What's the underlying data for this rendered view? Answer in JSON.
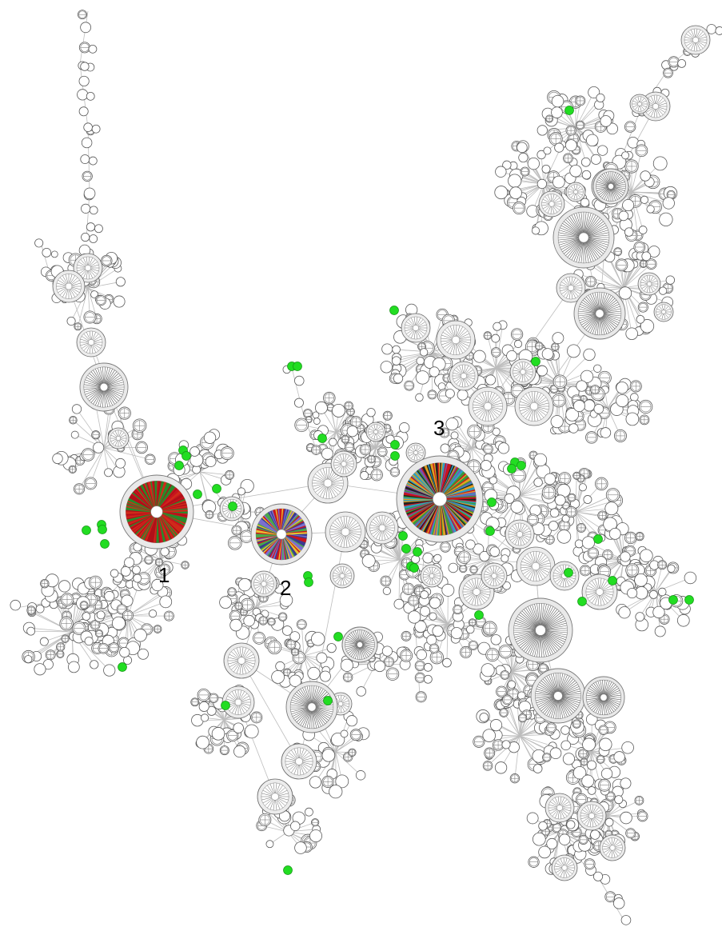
{
  "diagram": {
    "cluster_labels": [
      {
        "id": "cluster-1",
        "text": "1"
      },
      {
        "id": "cluster-2",
        "text": "2"
      },
      {
        "id": "cluster-3",
        "text": "3"
      }
    ],
    "colors": {
      "background": "#ffffff",
      "node_fill": "#ffffff",
      "node_stroke": "#5a5a5a",
      "hub_fill": "#e9e9e9",
      "edge": "#bdbdbd",
      "highlight_node": "#22dd22",
      "cluster1_palette": [
        "#c8141e",
        "#b01018",
        "#2a8a2a",
        "#d02a1a"
      ],
      "cluster2_palette": [
        "#7b6fd0",
        "#c8141e",
        "#4aa84a",
        "#e8c030",
        "#3a3a90"
      ],
      "cluster3_palette": [
        "#c8141e",
        "#e0a020",
        "#30a0c0",
        "#3a9a3a",
        "#7b4fb0",
        "#222222"
      ]
    }
  }
}
